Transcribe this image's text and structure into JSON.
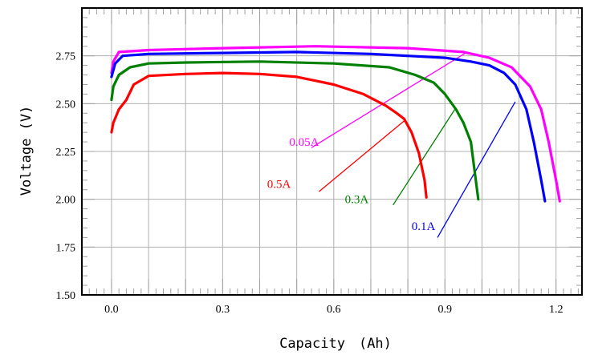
{
  "chart_data": {
    "type": "line",
    "xlabel": "Capacity　(Ah)",
    "ylabel": "Voltage (V)",
    "xlim": [
      -0.08,
      1.27
    ],
    "ylim": [
      1.5,
      3.0
    ],
    "x_ticks": [
      0.0,
      0.3,
      0.6,
      0.9,
      1.2
    ],
    "x_tick_labels": [
      "0.0",
      "0.3",
      "0.6",
      "0.9",
      "1.2"
    ],
    "y_ticks": [
      1.5,
      1.75,
      2.0,
      2.25,
      2.5,
      2.75
    ],
    "y_tick_labels": [
      "1.50",
      "1.75",
      "2.00",
      "2.25",
      "2.50",
      "2.75"
    ],
    "grid": true,
    "series": [
      {
        "name": "0.05A",
        "color": "#ff00ff",
        "label_pos": {
          "x": 0.48,
          "y": 2.3
        },
        "leader": {
          "x1": 0.54,
          "y1": 2.27,
          "x2": 0.96,
          "y2": 2.77
        },
        "points": [
          [
            0.0,
            2.66
          ],
          [
            0.005,
            2.72
          ],
          [
            0.02,
            2.77
          ],
          [
            0.1,
            2.78
          ],
          [
            0.3,
            2.79
          ],
          [
            0.55,
            2.8
          ],
          [
            0.8,
            2.79
          ],
          [
            0.95,
            2.77
          ],
          [
            1.02,
            2.74
          ],
          [
            1.08,
            2.69
          ],
          [
            1.13,
            2.59
          ],
          [
            1.16,
            2.47
          ],
          [
            1.18,
            2.3
          ],
          [
            1.2,
            2.1
          ],
          [
            1.21,
            1.99
          ]
        ]
      },
      {
        "name": "0.1A",
        "color": "#0000ff",
        "label_pos": {
          "x": 0.81,
          "y": 1.86
        },
        "leader": {
          "x1": 0.88,
          "y1": 1.8,
          "x2": 1.09,
          "y2": 2.51
        },
        "points": [
          [
            0.0,
            2.64
          ],
          [
            0.01,
            2.71
          ],
          [
            0.03,
            2.75
          ],
          [
            0.1,
            2.76
          ],
          [
            0.3,
            2.765
          ],
          [
            0.5,
            2.77
          ],
          [
            0.7,
            2.76
          ],
          [
            0.9,
            2.74
          ],
          [
            0.97,
            2.72
          ],
          [
            1.02,
            2.7
          ],
          [
            1.06,
            2.66
          ],
          [
            1.09,
            2.6
          ],
          [
            1.12,
            2.47
          ],
          [
            1.14,
            2.3
          ],
          [
            1.16,
            2.1
          ],
          [
            1.17,
            1.99
          ]
        ]
      },
      {
        "name": "0.3A",
        "color": "#008000",
        "label_pos": {
          "x": 0.63,
          "y": 2.0
        },
        "leader": {
          "x1": 0.76,
          "y1": 1.97,
          "x2": 0.93,
          "y2": 2.48
        },
        "points": [
          [
            0.0,
            2.52
          ],
          [
            0.005,
            2.59
          ],
          [
            0.02,
            2.65
          ],
          [
            0.05,
            2.69
          ],
          [
            0.1,
            2.71
          ],
          [
            0.2,
            2.715
          ],
          [
            0.4,
            2.72
          ],
          [
            0.6,
            2.71
          ],
          [
            0.75,
            2.69
          ],
          [
            0.82,
            2.65
          ],
          [
            0.87,
            2.61
          ],
          [
            0.9,
            2.55
          ],
          [
            0.93,
            2.47
          ],
          [
            0.95,
            2.4
          ],
          [
            0.97,
            2.3
          ],
          [
            0.98,
            2.15
          ],
          [
            0.99,
            2.0
          ]
        ]
      },
      {
        "name": "0.5A",
        "color": "#ff0000",
        "label_pos": {
          "x": 0.42,
          "y": 2.08
        },
        "leader": {
          "x1": 0.56,
          "y1": 2.04,
          "x2": 0.79,
          "y2": 2.41
        },
        "points": [
          [
            0.0,
            2.35
          ],
          [
            0.005,
            2.4
          ],
          [
            0.02,
            2.47
          ],
          [
            0.04,
            2.52
          ],
          [
            0.06,
            2.6
          ],
          [
            0.1,
            2.645
          ],
          [
            0.2,
            2.655
          ],
          [
            0.3,
            2.66
          ],
          [
            0.4,
            2.655
          ],
          [
            0.5,
            2.64
          ],
          [
            0.6,
            2.6
          ],
          [
            0.68,
            2.55
          ],
          [
            0.74,
            2.49
          ],
          [
            0.77,
            2.45
          ],
          [
            0.79,
            2.42
          ],
          [
            0.81,
            2.35
          ],
          [
            0.83,
            2.24
          ],
          [
            0.845,
            2.1
          ],
          [
            0.85,
            2.01
          ]
        ]
      }
    ]
  }
}
